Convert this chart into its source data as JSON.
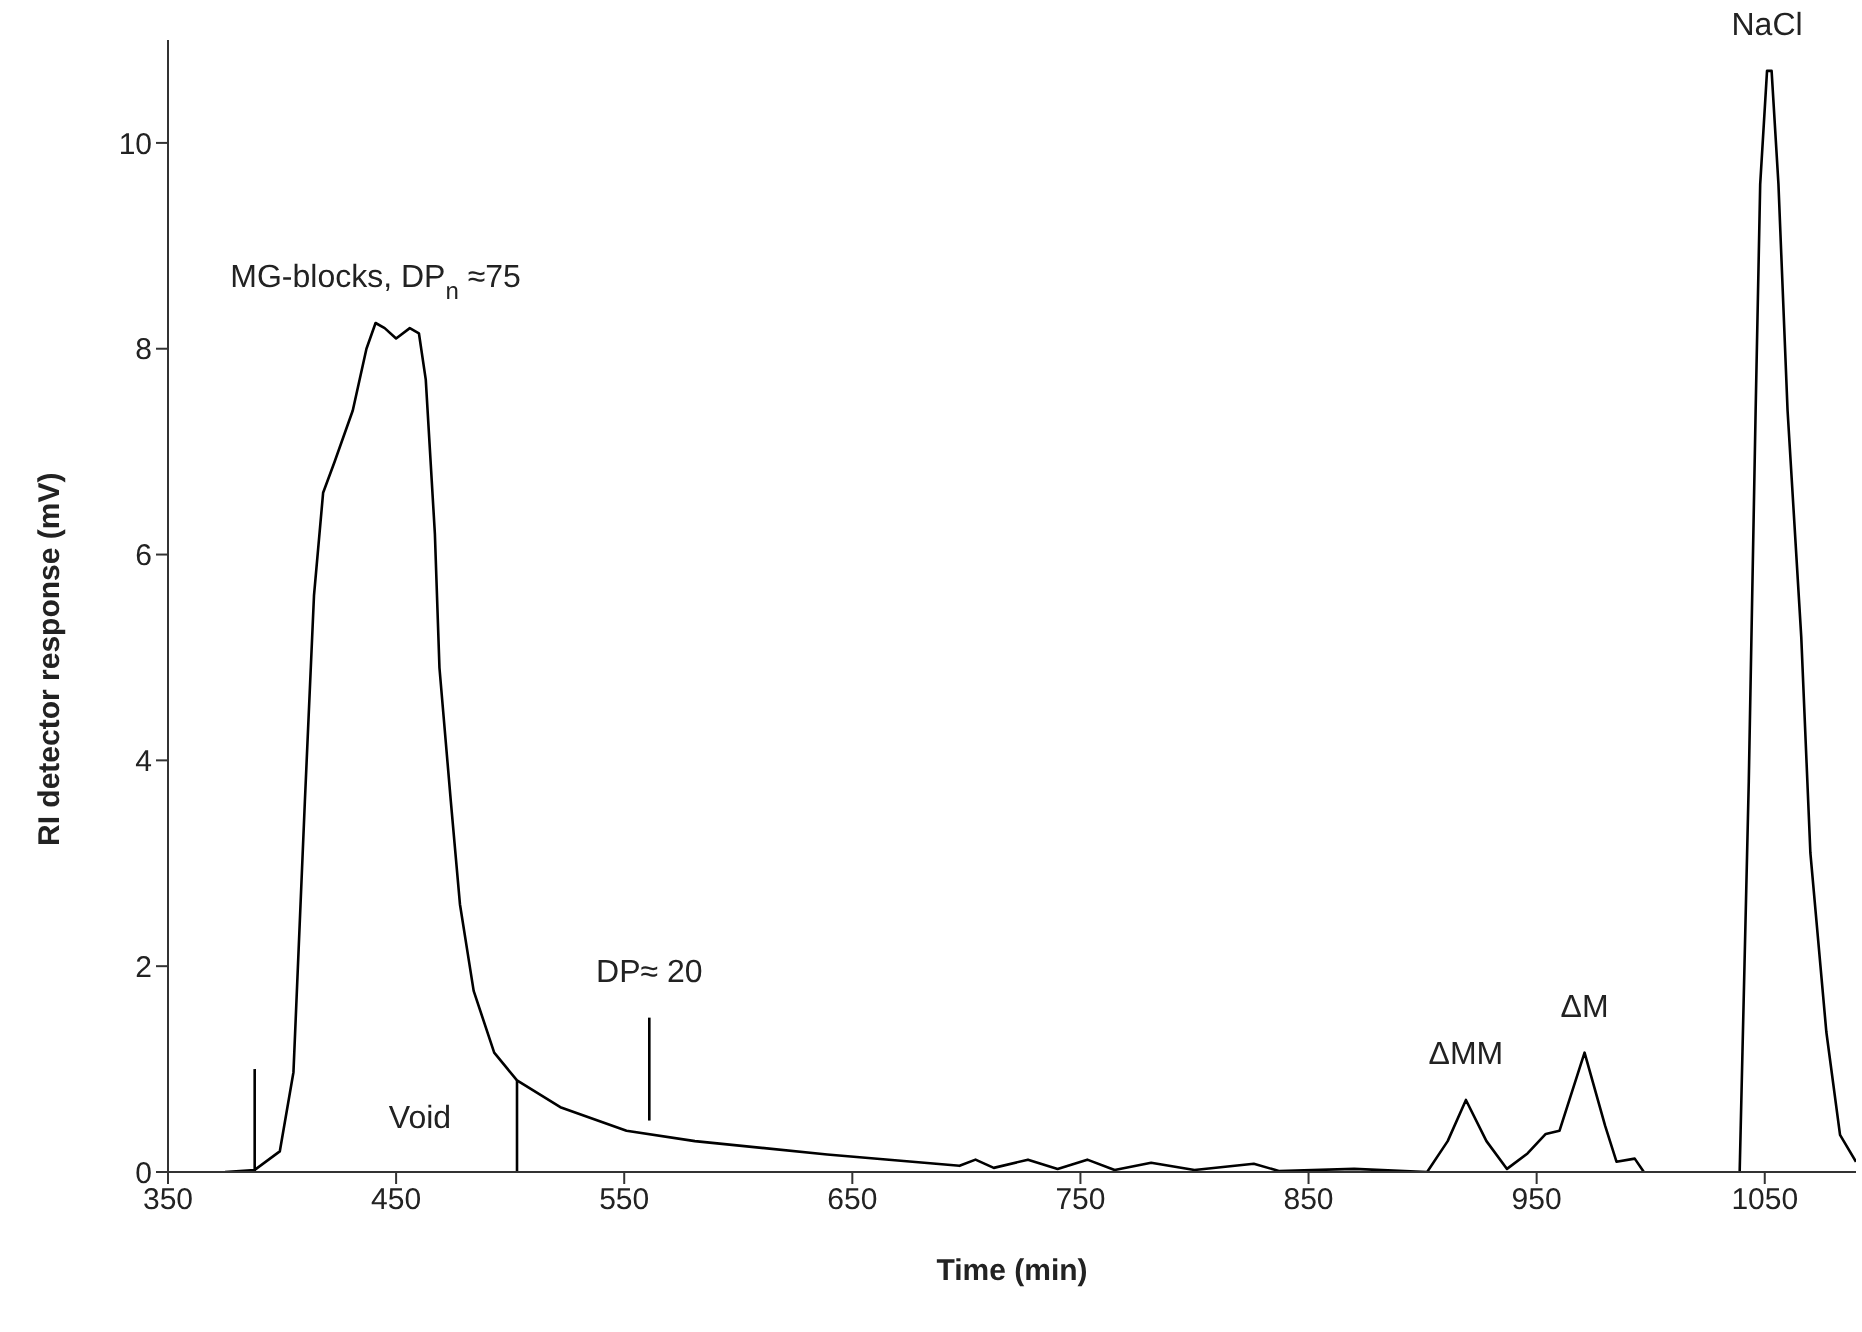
{
  "chart_data": {
    "type": "line",
    "xlabel": "Time (min)",
    "ylabel": "RI detector response (mV)",
    "xlim": [
      350,
      1090
    ],
    "xticks": [
      350,
      450,
      550,
      650,
      750,
      850,
      950,
      1050
    ],
    "ylim": [
      0,
      11
    ],
    "yticks": [
      0,
      2,
      4,
      6,
      8,
      10
    ],
    "grid": false,
    "marker": "none",
    "line_style": "solid",
    "series": [
      {
        "color": "#000000",
        "x": [
          375,
          388,
          399,
          405,
          410,
          414,
          418,
          423,
          431,
          437,
          441,
          445,
          450,
          456,
          460,
          463,
          467,
          469,
          474,
          478,
          484,
          493,
          503,
          522,
          551,
          581,
          639,
          697,
          704,
          712,
          727,
          740,
          753,
          765,
          781,
          800,
          826,
          837,
          870,
          902,
          911,
          919,
          928,
          937,
          946,
          954,
          960,
          971,
          980,
          985,
          993,
          997,
          1018,
          1039,
          1043,
          1046,
          1048,
          1051,
          1053,
          1056,
          1060,
          1066,
          1070,
          1077,
          1083,
          1090
        ],
        "values": [
          0,
          0.02,
          0.2,
          0.97,
          3.6,
          5.6,
          6.6,
          6.9,
          7.4,
          8.0,
          8.25,
          8.2,
          8.1,
          8.2,
          8.15,
          7.7,
          6.2,
          4.9,
          3.6,
          2.6,
          1.76,
          1.16,
          0.89,
          0.63,
          0.4,
          0.3,
          0.17,
          0.06,
          0.12,
          0.04,
          0.12,
          0.03,
          0.12,
          0.02,
          0.09,
          0.02,
          0.08,
          0.01,
          0.03,
          0,
          0.3,
          0.7,
          0.3,
          0.03,
          0.18,
          0.37,
          0.4,
          1.16,
          0.45,
          0.1,
          0.13,
          0,
          null,
          0,
          3.8,
          7.4,
          9.6,
          10.7,
          10.7,
          9.6,
          7.4,
          5.2,
          3.1,
          1.36,
          0.36,
          0.1
        ]
      },
      {
        "color": "#000000",
        "x": [
          388,
          388
        ],
        "values": [
          0,
          1
        ]
      },
      {
        "color": "#000000",
        "x": [
          503,
          503
        ],
        "values": [
          0,
          0.89
        ]
      },
      {
        "color": "#000000",
        "x": [
          561,
          561
        ],
        "values": [
          0.5,
          1.5
        ]
      }
    ],
    "annotations": [
      {
        "text": "MG-blocks, DP$_{n}$ ≈75",
        "x": 441,
        "y": 8.25
      },
      "Void",
      {
        "text": "DP≈ 20",
        "x": 561,
        "y": 1.5
      },
      {
        "text": "ΔMM",
        "x": 919,
        "y": 0.7
      },
      {
        "text": "ΔM",
        "x": 971,
        "y": 1.16
      },
      {
        "text": "NaCl",
        "x": 1051,
        "y": 10.7
      }
    ]
  }
}
